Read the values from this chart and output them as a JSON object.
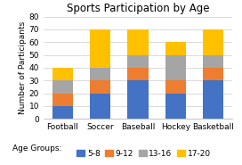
{
  "title": "Sports Participation by Age",
  "categories": [
    "Football",
    "Soccer",
    "Baseball",
    "Hockey",
    "Basketball"
  ],
  "age_groups": [
    "5-8",
    "9-12",
    "13-16",
    "17-20"
  ],
  "values": {
    "5-8": [
      10,
      20,
      30,
      20,
      30
    ],
    "9-12": [
      10,
      10,
      10,
      10,
      10
    ],
    "13-16": [
      10,
      10,
      10,
      20,
      10
    ],
    "17-20": [
      10,
      30,
      20,
      10,
      20
    ]
  },
  "colors": {
    "5-8": "#4472C4",
    "9-12": "#ED7D31",
    "13-16": "#A5A5A5",
    "17-20": "#FFC000"
  },
  "ylabel": "Number of Participants",
  "ylim": [
    0,
    80
  ],
  "yticks": [
    0,
    10,
    20,
    30,
    40,
    50,
    60,
    70,
    80
  ],
  "legend_label": "Age Groups:",
  "background_color": "#ffffff",
  "title_fontsize": 8.5,
  "axis_fontsize": 6.5,
  "tick_fontsize": 6.5,
  "legend_fontsize": 6.5
}
